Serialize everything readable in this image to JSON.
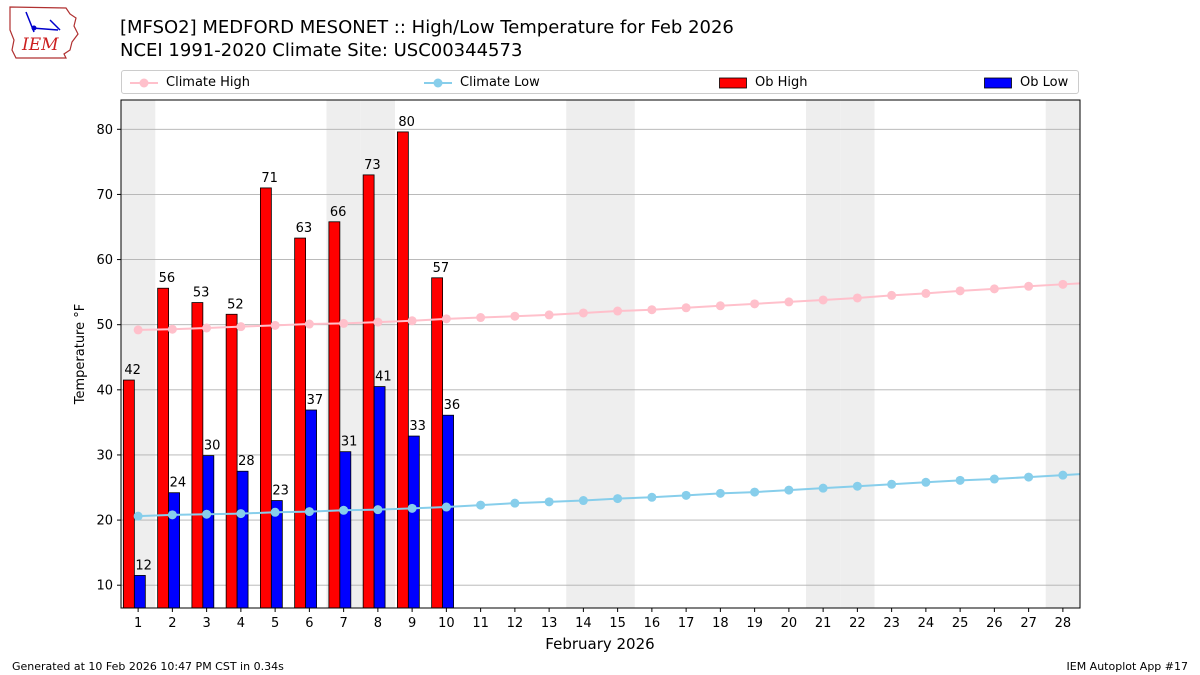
{
  "header": {
    "title_line1": "[MFSO2] MEDFORD MESONET :: High/Low Temperature for Feb 2026",
    "title_line2": "NCEI 1991-2020 Climate Site: USC00344573",
    "logo_text": "IEM"
  },
  "footer": {
    "generated": "Generated at 10 Feb 2026 10:47 PM CST in 0.34s",
    "app": "IEM Autoplot App #17"
  },
  "legend": {
    "climate_high": "Climate High",
    "climate_low": "Climate Low",
    "ob_high": "Ob High",
    "ob_low": "Ob Low"
  },
  "colors": {
    "climate_high": "#ffc0cb",
    "climate_low": "#87ceeb",
    "ob_high": "#ff0000",
    "ob_low": "#0000ff",
    "weekend_shade": "#eeeeee",
    "grid": "#b0b0b0"
  },
  "chart_data": {
    "type": "bar",
    "xlabel": "February 2026",
    "ylabel": "Temperature °F",
    "ylim": [
      6.5,
      84.5
    ],
    "yticks": [
      10,
      20,
      30,
      40,
      50,
      60,
      70,
      80
    ],
    "xlim": [
      0.5,
      28.5
    ],
    "grid": "horizontal",
    "legend_position": "top",
    "days": [
      1,
      2,
      3,
      4,
      5,
      6,
      7,
      8,
      9,
      10,
      11,
      12,
      13,
      14,
      15,
      16,
      17,
      18,
      19,
      20,
      21,
      22,
      23,
      24,
      25,
      26,
      27,
      28
    ],
    "weekend_days": [
      1,
      7,
      8,
      14,
      15,
      21,
      22,
      28
    ],
    "ob_high": [
      41.5,
      55.6,
      53.4,
      51.6,
      71,
      63.3,
      65.8,
      73,
      79.6,
      57.2
    ],
    "ob_high_labels": [
      "42",
      "56",
      "53",
      "52",
      "71",
      "63",
      "66",
      "73",
      "80",
      "57"
    ],
    "ob_low": [
      11.5,
      24.2,
      29.9,
      27.5,
      23,
      36.9,
      30.5,
      40.5,
      32.9,
      36.1
    ],
    "ob_low_labels": [
      "12",
      "24",
      "30",
      "28",
      "23",
      "37",
      "31",
      "41",
      "33",
      "36"
    ],
    "climate_high": [
      49.2,
      49.3,
      49.5,
      49.7,
      49.9,
      50.1,
      50.2,
      50.4,
      50.6,
      50.9,
      51.1,
      51.3,
      51.5,
      51.8,
      52.1,
      52.3,
      52.6,
      52.9,
      53.2,
      53.5,
      53.8,
      54.1,
      54.5,
      54.8,
      55.2,
      55.5,
      55.9,
      56.2
    ],
    "climate_low": [
      20.6,
      20.8,
      20.9,
      21.0,
      21.2,
      21.3,
      21.5,
      21.6,
      21.8,
      22.0,
      22.3,
      22.6,
      22.8,
      23.0,
      23.3,
      23.5,
      23.8,
      24.1,
      24.3,
      24.6,
      24.9,
      25.2,
      25.5,
      25.8,
      26.1,
      26.3,
      26.6,
      26.9
    ]
  }
}
